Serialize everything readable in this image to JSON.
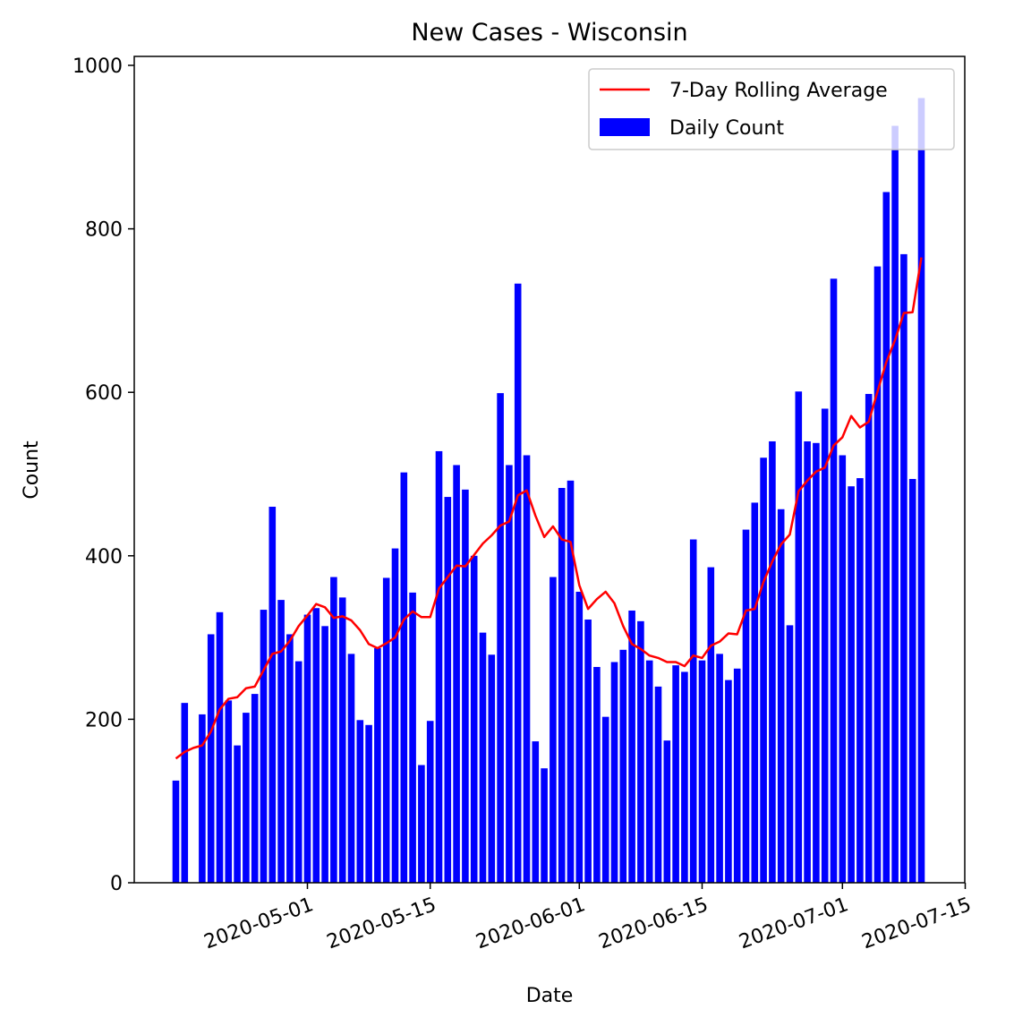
{
  "chart_data": {
    "type": "bar",
    "title": "New Cases - Wisconsin",
    "xlabel": "Date",
    "ylabel": "Count",
    "ylim": [
      0,
      1000
    ],
    "yticks": [
      0,
      200,
      400,
      600,
      800,
      1000
    ],
    "xticks": [
      "2020-05-01",
      "2020-05-15",
      "2020-06-01",
      "2020-06-15",
      "2020-07-01",
      "2020-07-15"
    ],
    "x_start": "2020-04-16",
    "x_end": "2020-07-15",
    "legend_position": "upper right",
    "colors": {
      "bars": "#0000ff",
      "line": "#ff0000"
    },
    "series": [
      {
        "name": "Daily Count",
        "type": "bar",
        "values": [
          125,
          220,
          0,
          206,
          304,
          331,
          223,
          168,
          208,
          231,
          334,
          460,
          346,
          304,
          271,
          328,
          336,
          314,
          374,
          349,
          280,
          199,
          193,
          287,
          373,
          409,
          502,
          355,
          144,
          198,
          528,
          472,
          511,
          481,
          400,
          306,
          279,
          599,
          511,
          733,
          523,
          173,
          140,
          374,
          483,
          492,
          356,
          322,
          264,
          203,
          270,
          285,
          333,
          320,
          272,
          240,
          174,
          266,
          258,
          420,
          272,
          386,
          280,
          248,
          262,
          432,
          465,
          520,
          540,
          457,
          315,
          601,
          540,
          538,
          580,
          739,
          523,
          485,
          495,
          598,
          754,
          845,
          926,
          769,
          494,
          960
        ]
      },
      {
        "name": "7-Day Rolling Average",
        "type": "line",
        "values": [
          152,
          160,
          165,
          168,
          185,
          212,
          225,
          227,
          238,
          240,
          260,
          280,
          283,
          296,
          314,
          327,
          341,
          337,
          324,
          326,
          321,
          309,
          292,
          287,
          293,
          300,
          322,
          332,
          325,
          325,
          360,
          374,
          388,
          387,
          401,
          415,
          425,
          437,
          442,
          474,
          480,
          449,
          423,
          436,
          420,
          417,
          364,
          335,
          347,
          356,
          342,
          314,
          292,
          286,
          278,
          275,
          270,
          270,
          265,
          278,
          275,
          290,
          295,
          305,
          304,
          333,
          335,
          368,
          393,
          414,
          426,
          479,
          492,
          503,
          508,
          535,
          545,
          571,
          557,
          564,
          601,
          637,
          664,
          697,
          698,
          765
        ]
      }
    ]
  }
}
